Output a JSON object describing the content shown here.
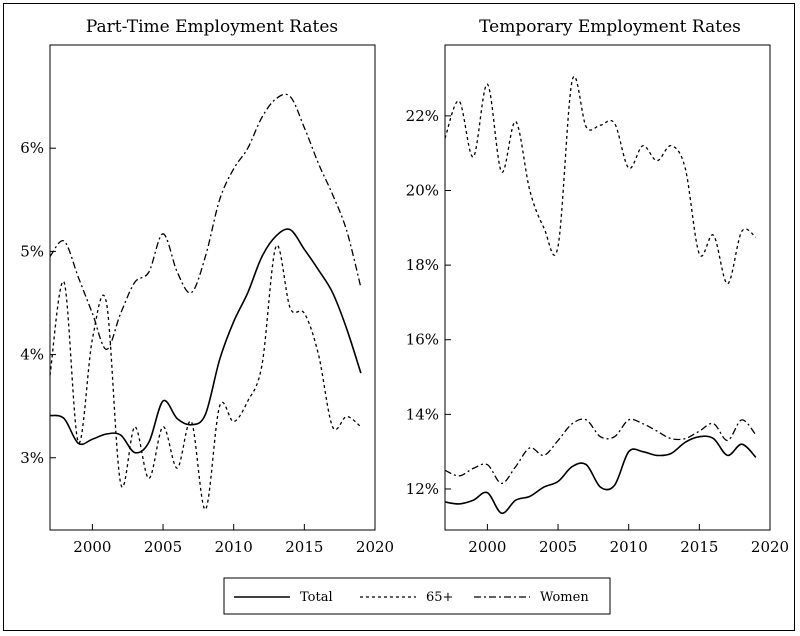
{
  "chart_data": [
    {
      "type": "line",
      "title": "Part-Time Employment Rates",
      "xlabel": "",
      "ylabel": "",
      "xlim": [
        1997,
        2020
      ],
      "ylim": [
        2.3,
        7.0
      ],
      "xticks": [
        2000,
        2005,
        2010,
        2015,
        2020
      ],
      "xtick_labels": [
        "2000",
        "2005",
        "2010",
        "2015",
        "2020"
      ],
      "yticks": [
        3,
        4,
        5,
        6
      ],
      "ytick_labels": [
        "3%",
        "4%",
        "5%",
        "6%"
      ],
      "grid": false,
      "series": [
        {
          "name": "Total",
          "x": [
            1997,
            1998,
            1999,
            2000,
            2001,
            2002,
            2003,
            2004,
            2005,
            2006,
            2007,
            2008,
            2009,
            2010,
            2011,
            2012,
            2013,
            2014,
            2015,
            2016,
            2017,
            2018,
            2019
          ],
          "values": [
            3.41,
            3.38,
            3.14,
            3.18,
            3.23,
            3.22,
            3.05,
            3.15,
            3.55,
            3.38,
            3.32,
            3.42,
            3.95,
            4.32,
            4.6,
            4.95,
            5.15,
            5.21,
            5.02,
            4.82,
            4.6,
            4.25,
            3.82
          ]
        },
        {
          "name": "65+",
          "x": [
            1997,
            1998,
            1999,
            2000,
            2001,
            2002,
            2003,
            2004,
            2005,
            2006,
            2007,
            2008,
            2009,
            2010,
            2011,
            2012,
            2013,
            2014,
            2015,
            2016,
            2017,
            2018,
            2019
          ],
          "values": [
            3.8,
            4.7,
            3.15,
            4.15,
            4.5,
            2.75,
            3.3,
            2.8,
            3.3,
            2.9,
            3.35,
            2.5,
            3.5,
            3.35,
            3.55,
            3.9,
            5.05,
            4.45,
            4.4,
            4.0,
            3.3,
            3.4,
            3.3
          ]
        },
        {
          "name": "Women",
          "x": [
            1997,
            1998,
            1999,
            2000,
            2001,
            2002,
            2003,
            2004,
            2005,
            2006,
            2007,
            2008,
            2009,
            2010,
            2011,
            2012,
            2013,
            2014,
            2015,
            2016,
            2017,
            2018,
            2019
          ],
          "values": [
            4.95,
            5.1,
            4.75,
            4.4,
            4.05,
            4.4,
            4.7,
            4.8,
            5.17,
            4.8,
            4.6,
            4.95,
            5.5,
            5.8,
            6.0,
            6.3,
            6.48,
            6.5,
            6.2,
            5.85,
            5.55,
            5.2,
            4.65
          ]
        }
      ]
    },
    {
      "type": "line",
      "title": "Temporary Employment Rates",
      "xlabel": "",
      "ylabel": "",
      "xlim": [
        1997,
        2020
      ],
      "ylim": [
        10.9,
        23.9
      ],
      "xticks": [
        2000,
        2005,
        2010,
        2015,
        2020
      ],
      "xtick_labels": [
        "2000",
        "2005",
        "2010",
        "2015",
        "2020"
      ],
      "yticks": [
        12,
        14,
        16,
        18,
        20,
        22
      ],
      "ytick_labels": [
        "12%",
        "14%",
        "16%",
        "18%",
        "20%",
        "22%"
      ],
      "grid": false,
      "series": [
        {
          "name": "Total",
          "x": [
            1997,
            1998,
            1999,
            2000,
            2001,
            2002,
            2003,
            2004,
            2005,
            2006,
            2007,
            2008,
            2009,
            2010,
            2011,
            2012,
            2013,
            2014,
            2015,
            2016,
            2017,
            2018,
            2019
          ],
          "values": [
            11.65,
            11.6,
            11.7,
            11.9,
            11.35,
            11.7,
            11.8,
            12.05,
            12.2,
            12.6,
            12.65,
            12.05,
            12.1,
            13.0,
            13.0,
            12.9,
            12.95,
            13.25,
            13.4,
            13.35,
            12.9,
            13.2,
            12.85
          ]
        },
        {
          "name": "65+",
          "x": [
            1997,
            1998,
            1999,
            2000,
            2001,
            2002,
            2003,
            2004,
            2005,
            2006,
            2007,
            2008,
            2009,
            2010,
            2011,
            2012,
            2013,
            2014,
            2015,
            2016,
            2017,
            2018,
            2019
          ],
          "values": [
            21.4,
            22.4,
            20.9,
            22.85,
            20.5,
            21.85,
            20.0,
            19.0,
            18.5,
            22.95,
            21.7,
            21.75,
            21.8,
            20.6,
            21.2,
            20.8,
            21.2,
            20.6,
            18.3,
            18.8,
            17.5,
            18.9,
            18.75
          ]
        },
        {
          "name": "Women",
          "x": [
            1997,
            1998,
            1999,
            2000,
            2001,
            2002,
            2003,
            2004,
            2005,
            2006,
            2007,
            2008,
            2009,
            2010,
            2011,
            2012,
            2013,
            2014,
            2015,
            2016,
            2017,
            2018,
            2019
          ],
          "values": [
            12.5,
            12.35,
            12.55,
            12.65,
            12.15,
            12.6,
            13.1,
            12.9,
            13.3,
            13.75,
            13.85,
            13.4,
            13.4,
            13.85,
            13.75,
            13.55,
            13.35,
            13.35,
            13.55,
            13.75,
            13.3,
            13.85,
            13.45
          ]
        }
      ]
    }
  ],
  "legend": {
    "placement": "bottom-center",
    "entries": [
      {
        "label": "Total",
        "dash": "solid"
      },
      {
        "label": "65+",
        "dash": "dotted"
      },
      {
        "label": "Women",
        "dash": "dashdot"
      }
    ]
  }
}
